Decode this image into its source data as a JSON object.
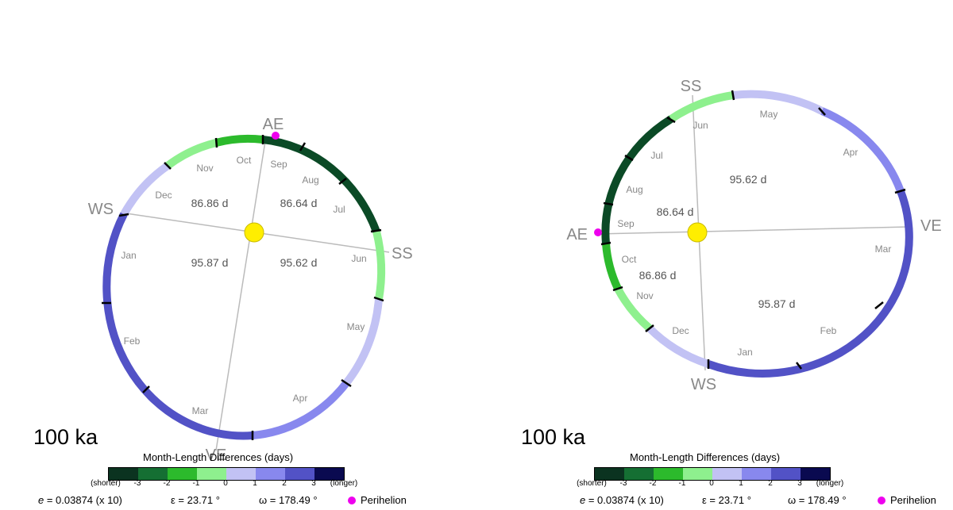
{
  "colors": {
    "scale": [
      "#0b3320",
      "#156f33",
      "#2cba2c",
      "#8ef08e",
      "#c2c2f4",
      "#8888ee",
      "#5252c6",
      "#0a0a50"
    ],
    "ring_green_dark": "#0b4a26",
    "ring_green_mid": "#2cba2c",
    "ring_green_light": "#8ef08e",
    "ring_lavender": "#c2c2f4",
    "ring_periwinkle": "#8888ee",
    "ring_indigo": "#5252c6",
    "sun": "#ffee00",
    "perihelion": "#ee00ee",
    "axis_line": "#bbbbbb",
    "text_gray": "#888888"
  },
  "panels": [
    {
      "age": "100 ka",
      "points": {
        "AE": "AE",
        "SS": "SS",
        "VE": "VE",
        "WS": "WS"
      },
      "months": [
        "Jan",
        "Feb",
        "Mar",
        "Apr",
        "May",
        "Jun",
        "Jul",
        "Aug",
        "Sep",
        "Oct",
        "Nov",
        "Dec"
      ],
      "seasons": [
        "86.86 d",
        "86.64 d",
        "95.87 d",
        "95.62 d"
      ],
      "legend_title": "Month-Length Differences (days)",
      "legend_labels": [
        "(shorter)",
        "-3",
        "-2",
        "-1",
        "0",
        "1",
        "2",
        "3",
        "(longer)"
      ],
      "params": {
        "e_label": "e",
        "e_value": " = 0.03874 (x 10)",
        "obliquity": "ε = 23.71 °",
        "omega": "ω = 178.49 °",
        "perihelion": "Perihelion"
      }
    },
    {
      "age": "100 ka",
      "points": {
        "AE": "AE",
        "SS": "SS",
        "VE": "VE",
        "WS": "WS"
      },
      "months": [
        "Jan",
        "Feb",
        "Mar",
        "Apr",
        "May",
        "Jun",
        "Jul",
        "Aug",
        "Sep",
        "Oct",
        "Nov",
        "Dec"
      ],
      "seasons": [
        "95.62 d",
        "86.64 d",
        "86.86 d",
        "95.87 d"
      ],
      "legend_title": "Month-Length Differences (days)",
      "legend_labels": [
        "(shorter)",
        "-3",
        "-2",
        "-1",
        "0",
        "1",
        "2",
        "3",
        "(longer)"
      ],
      "params": {
        "e_label": "e",
        "e_value": " = 0.03874 (x 10)",
        "obliquity": "ε = 23.71 °",
        "omega": "ω = 178.49 °",
        "perihelion": "Perihelion"
      }
    }
  ]
}
